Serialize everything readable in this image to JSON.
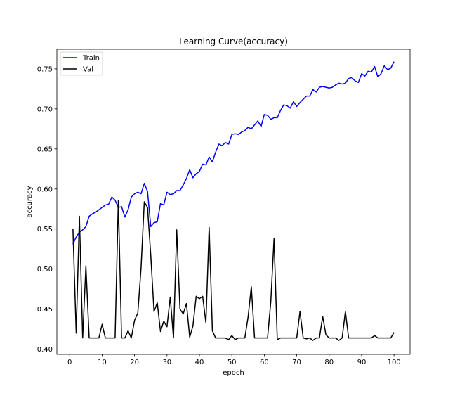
{
  "chart_data": {
    "type": "line",
    "title": "Learning Curve(accuracy)",
    "xlabel": "epoch",
    "ylabel": "accuracy",
    "xlim": [
      -3.95,
      104.95
    ],
    "ylim": [
      0.3935,
      0.7745
    ],
    "xticks": [
      0,
      10,
      20,
      30,
      40,
      50,
      60,
      70,
      80,
      90,
      100
    ],
    "yticks": [
      0.4,
      0.45,
      0.5,
      0.55,
      0.6,
      0.65,
      0.7,
      0.75
    ],
    "grid": false,
    "legend": {
      "placement": "top-left"
    },
    "x": [
      1,
      2,
      3,
      4,
      5,
      6,
      7,
      8,
      9,
      10,
      11,
      12,
      13,
      14,
      15,
      16,
      17,
      18,
      19,
      20,
      21,
      22,
      23,
      24,
      25,
      26,
      27,
      28,
      29,
      30,
      31,
      32,
      33,
      34,
      35,
      36,
      37,
      38,
      39,
      40,
      41,
      42,
      43,
      44,
      45,
      46,
      47,
      48,
      49,
      50,
      51,
      52,
      53,
      54,
      55,
      56,
      57,
      58,
      59,
      60,
      61,
      62,
      63,
      64,
      65,
      66,
      67,
      68,
      69,
      70,
      71,
      72,
      73,
      74,
      75,
      76,
      77,
      78,
      79,
      80,
      81,
      82,
      83,
      84,
      85,
      86,
      87,
      88,
      89,
      90,
      91,
      92,
      93,
      94,
      95,
      96,
      97,
      98,
      99,
      100
    ],
    "series": [
      {
        "name": "Train",
        "color": "#0000ff",
        "values": [
          0.531,
          0.54,
          0.546,
          0.549,
          0.553,
          0.566,
          0.569,
          0.571,
          0.574,
          0.577,
          0.58,
          0.581,
          0.59,
          0.586,
          0.577,
          0.578,
          0.565,
          0.574,
          0.59,
          0.594,
          0.596,
          0.594,
          0.607,
          0.597,
          0.553,
          0.558,
          0.559,
          0.582,
          0.58,
          0.596,
          0.593,
          0.594,
          0.598,
          0.598,
          0.605,
          0.613,
          0.624,
          0.614,
          0.619,
          0.622,
          0.631,
          0.63,
          0.64,
          0.634,
          0.646,
          0.656,
          0.654,
          0.658,
          0.656,
          0.668,
          0.669,
          0.668,
          0.671,
          0.673,
          0.677,
          0.675,
          0.68,
          0.685,
          0.678,
          0.693,
          0.692,
          0.687,
          0.689,
          0.689,
          0.698,
          0.705,
          0.704,
          0.701,
          0.709,
          0.703,
          0.708,
          0.712,
          0.716,
          0.716,
          0.724,
          0.721,
          0.727,
          0.728,
          0.727,
          0.726,
          0.727,
          0.73,
          0.732,
          0.731,
          0.732,
          0.738,
          0.739,
          0.735,
          0.733,
          0.744,
          0.741,
          0.747,
          0.746,
          0.753,
          0.74,
          0.744,
          0.754,
          0.749,
          0.751,
          0.759
        ]
      },
      {
        "name": "Val",
        "color": "#000000",
        "values": [
          0.55,
          0.42,
          0.566,
          0.414,
          0.504,
          0.414,
          0.414,
          0.414,
          0.414,
          0.431,
          0.414,
          0.414,
          0.414,
          0.414,
          0.586,
          0.414,
          0.414,
          0.423,
          0.414,
          0.436,
          0.445,
          0.501,
          0.584,
          0.577,
          0.517,
          0.447,
          0.458,
          0.422,
          0.435,
          0.428,
          0.465,
          0.414,
          0.549,
          0.45,
          0.444,
          0.457,
          0.415,
          0.429,
          0.466,
          0.463,
          0.466,
          0.433,
          0.552,
          0.423,
          0.414,
          0.414,
          0.414,
          0.414,
          0.412,
          0.417,
          0.412,
          0.414,
          0.414,
          0.414,
          0.44,
          0.478,
          0.414,
          0.414,
          0.414,
          0.414,
          0.414,
          0.459,
          0.538,
          0.412,
          0.414,
          0.414,
          0.414,
          0.414,
          0.414,
          0.414,
          0.447,
          0.414,
          0.413,
          0.414,
          0.411,
          0.414,
          0.414,
          0.441,
          0.418,
          0.414,
          0.414,
          0.414,
          0.411,
          0.414,
          0.447,
          0.414,
          0.414,
          0.414,
          0.414,
          0.414,
          0.414,
          0.414,
          0.414,
          0.417,
          0.414,
          0.414,
          0.414,
          0.414,
          0.414,
          0.421
        ]
      }
    ]
  }
}
